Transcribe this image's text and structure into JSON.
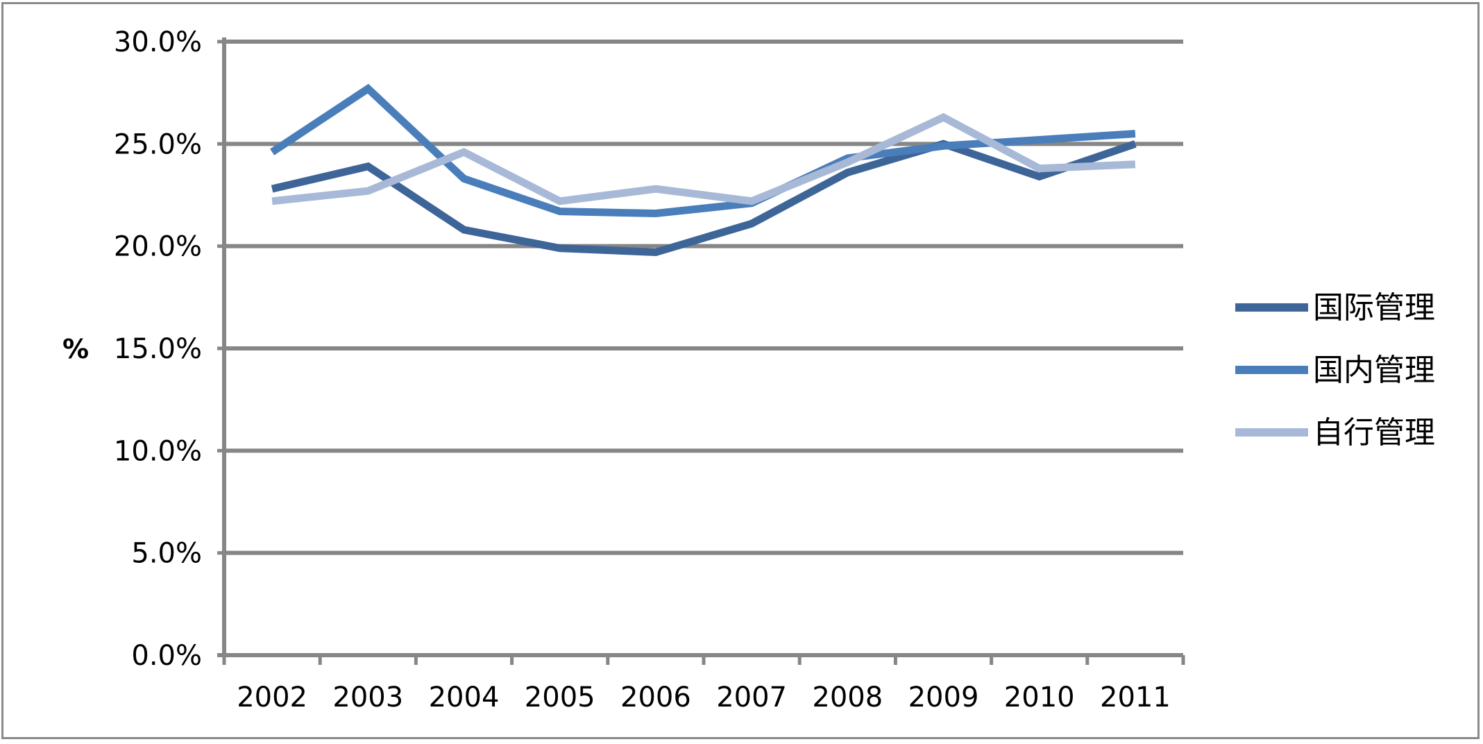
{
  "chart_data": {
    "type": "line",
    "title": "",
    "xlabel": "",
    "ylabel": "%",
    "categories": [
      "2002",
      "2003",
      "2004",
      "2005",
      "2006",
      "2007",
      "2008",
      "2009",
      "2010",
      "2011"
    ],
    "ylim": [
      0,
      30
    ],
    "yticks": [
      "0.0%",
      "5.0%",
      "10.0%",
      "15.0%",
      "20.0%",
      "25.0%",
      "30.0%"
    ],
    "grid": true,
    "legend_position": "right",
    "series": [
      {
        "name": "国际管理",
        "color": "#3E6598",
        "values": [
          22.8,
          23.9,
          20.8,
          19.9,
          19.7,
          21.1,
          23.6,
          25.0,
          23.4,
          25.0
        ]
      },
      {
        "name": "国内管理",
        "color": "#4A7EBB",
        "values": [
          24.6,
          27.7,
          23.3,
          21.7,
          21.6,
          22.1,
          24.3,
          24.9,
          25.2,
          25.5
        ]
      },
      {
        "name": "自行管理",
        "color": "#A7B9D7",
        "values": [
          22.2,
          22.7,
          24.6,
          22.2,
          22.8,
          22.2,
          24.1,
          26.3,
          23.8,
          24.0
        ]
      }
    ]
  }
}
